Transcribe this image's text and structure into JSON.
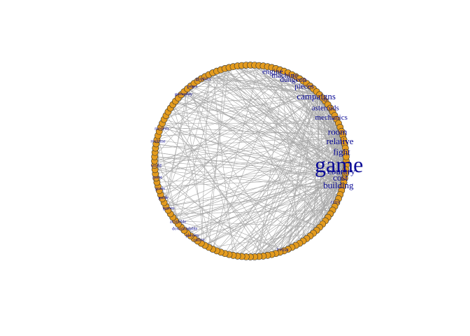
{
  "graph": {
    "node_fill": "#e39b1e",
    "node_stroke": "#333333",
    "edge_color": "#a8a8a8",
    "label_color": "#0a0a96",
    "node_count": 140,
    "layout": "circle",
    "labels": [
      {
        "text": "game",
        "angle": 4,
        "size": "largest"
      },
      {
        "text": "building",
        "angle": 16,
        "size": "medium"
      },
      {
        "text": "cost",
        "angle": 11,
        "size": "medium"
      },
      {
        "text": "country",
        "angle": 7,
        "size": "medium"
      },
      {
        "text": "fight",
        "angle": -5,
        "size": "medium"
      },
      {
        "text": "relative",
        "angle": -12,
        "size": "medium"
      },
      {
        "text": "room",
        "angle": -18,
        "size": "medium"
      },
      {
        "text": "mechanics",
        "angle": -28,
        "size": "small"
      },
      {
        "text": "asteroids",
        "angle": -35,
        "size": "small"
      },
      {
        "text": "campaigns",
        "angle": -44,
        "size": "medium"
      },
      {
        "text": "pieces",
        "angle": -54,
        "size": "small"
      },
      {
        "text": "dungeon",
        "angle": -62,
        "size": "small"
      },
      {
        "text": "machine",
        "angle": -68,
        "size": "small"
      },
      {
        "text": "engine",
        "angle": -76,
        "size": "small"
      },
      {
        "text": "graphics",
        "angle": -120,
        "size": "tiny"
      },
      {
        "text": "pages",
        "angle": -128,
        "size": "tiny"
      },
      {
        "text": "gameplay",
        "angle": -135,
        "size": "tiny"
      },
      {
        "text": "modern",
        "angle": -160,
        "size": "tiny"
      },
      {
        "text": "realtime",
        "angle": -168,
        "size": "tiny"
      },
      {
        "text": "world",
        "angle": 177,
        "size": "tiny"
      },
      {
        "text": "quest",
        "angle": 170,
        "size": "tiny"
      },
      {
        "text": "goals",
        "angle": 163,
        "size": "tiny"
      },
      {
        "text": "guide",
        "angle": 157,
        "size": "tiny"
      },
      {
        "text": "games",
        "angle": 150,
        "size": "tiny"
      },
      {
        "text": "available",
        "angle": 140,
        "size": "tiny"
      },
      {
        "text": "downloadable",
        "angle": 134,
        "size": "tiny"
      },
      {
        "text": "players",
        "angle": 128,
        "size": "tiny"
      },
      {
        "text": "online",
        "angle": 123,
        "size": "tiny"
      },
      {
        "text": "format",
        "angle": 70,
        "size": "tiny"
      },
      {
        "text": "extra",
        "angle": 26,
        "size": "tiny"
      }
    ]
  }
}
